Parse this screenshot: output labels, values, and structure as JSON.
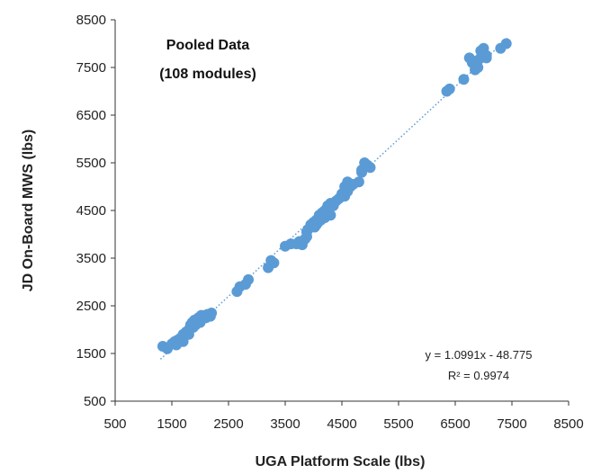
{
  "chart_data": {
    "type": "scatter",
    "title": "",
    "xlabel": "UGA Platform Scale (lbs)",
    "ylabel": "JD On-Board MWS (lbs)",
    "xlim": [
      500,
      8500
    ],
    "ylim": [
      500,
      8500
    ],
    "xticks": [
      500,
      1500,
      2500,
      3500,
      4500,
      5500,
      6500,
      7500,
      8500
    ],
    "yticks": [
      500,
      1500,
      2500,
      3500,
      4500,
      5500,
      6500,
      7500,
      8500
    ],
    "x_tick_labels": [
      "500",
      "1500",
      "2500",
      "3500",
      "4500",
      "5500",
      "6500",
      "7500",
      "8500"
    ],
    "y_tick_labels": [
      "500",
      "1500",
      "2500",
      "3500",
      "4500",
      "5500",
      "6500",
      "7500",
      "8500"
    ],
    "grid": false,
    "marker_color": "#5b9bd5",
    "trendline": {
      "type": "linear",
      "slope": 1.0991,
      "intercept": -48.775,
      "x_range": [
        1300,
        7450
      ],
      "style": "dotted",
      "color": "#5b9bd5"
    },
    "annotations": {
      "title_line1": "Pooled Data",
      "title_line2": "(108 modules)",
      "equation": "y = 1.0991x - 48.775",
      "r_squared": "R² = 0.9974"
    },
    "series": [
      {
        "x": [
          1340,
          1420,
          1500,
          1550,
          1600,
          1650,
          1700,
          1750,
          1800,
          1830,
          1860,
          1880,
          1900,
          1920,
          1950,
          1970,
          2000,
          2020,
          2050,
          2080,
          2100,
          2130,
          2150,
          2180,
          2200,
          1900,
          1950,
          2000,
          2050,
          2650,
          2700,
          2800,
          2850,
          3200,
          3250,
          3300,
          3500,
          3600,
          3700,
          3750,
          3800,
          3850,
          3880,
          3900,
          3950,
          3980,
          4000,
          4020,
          4050,
          4080,
          4100,
          4130,
          4150,
          4180,
          4200,
          4230,
          4250,
          4280,
          4300,
          4350,
          4400,
          4450,
          4500,
          4550,
          4600,
          4650,
          4700,
          4800,
          4850,
          4900,
          4950,
          5000,
          6350,
          6400,
          6650,
          6750,
          6800,
          6850,
          6900,
          6950,
          7000,
          7050,
          7300,
          7400,
          6850,
          6900,
          7000,
          7050,
          4550,
          4600,
          3950,
          4000,
          2000,
          2100,
          1800,
          1700,
          4100,
          4200,
          4300,
          4850,
          4900,
          3880,
          3950,
          4050,
          4150,
          4250,
          6950,
          1580
        ],
        "y": [
          1650,
          1600,
          1700,
          1750,
          1780,
          1820,
          1900,
          1950,
          2000,
          2100,
          2150,
          2050,
          2200,
          2100,
          2180,
          2250,
          2200,
          2300,
          2250,
          2300,
          2250,
          2320,
          2300,
          2280,
          2350,
          2100,
          2150,
          2220,
          2280,
          2800,
          2900,
          2950,
          3050,
          3300,
          3450,
          3400,
          3750,
          3800,
          3800,
          3850,
          3780,
          3900,
          3950,
          4100,
          4150,
          4200,
          4250,
          4150,
          4300,
          4250,
          4350,
          4300,
          4450,
          4400,
          4350,
          4500,
          4450,
          4550,
          4400,
          4600,
          4700,
          4750,
          4850,
          4800,
          4900,
          5000,
          5050,
          5100,
          5300,
          5400,
          5450,
          5400,
          7000,
          7050,
          7250,
          7700,
          7600,
          7450,
          7500,
          7850,
          7900,
          7700,
          7900,
          8000,
          7550,
          7650,
          7800,
          7750,
          5000,
          5100,
          4200,
          4250,
          2150,
          2250,
          1900,
          1750,
          4400,
          4500,
          4650,
          5350,
          5500,
          4050,
          4150,
          4200,
          4400,
          4600,
          7700,
          1680
        ]
      }
    ]
  }
}
